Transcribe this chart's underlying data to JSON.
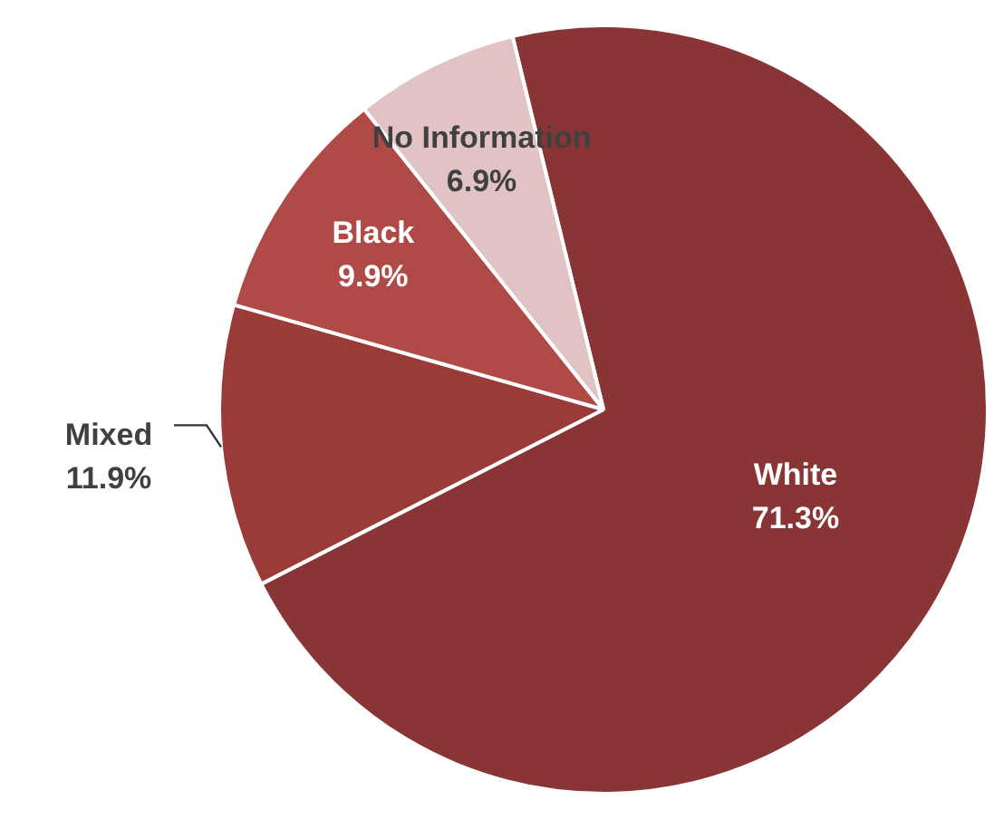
{
  "chart_data": {
    "type": "pie",
    "categories": [
      "White",
      "Mixed",
      "Black",
      "No Information"
    ],
    "values": [
      71.3,
      11.9,
      9.9,
      6.9
    ],
    "colors": [
      "#8a3535",
      "#9a3b3a",
      "#b04a47",
      "#e2c3c3"
    ],
    "value_labels": [
      "71.3%",
      "11.9%",
      "9.9%",
      "6.9%"
    ],
    "legend": false
  }
}
